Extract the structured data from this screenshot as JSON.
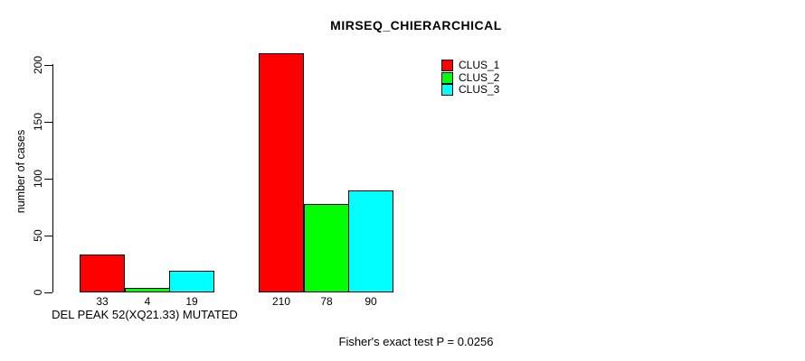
{
  "chart_data": {
    "type": "bar",
    "title": "MIRSEQ_CHIERARCHICAL",
    "ylabel": "number of cases",
    "xlabel": "DEL PEAK 52(XQ21.33) MUTATED",
    "annotation": "Fisher's exact test P = 0.0256",
    "ylim": [
      0,
      200
    ],
    "yticks": [
      0,
      50,
      100,
      150,
      200
    ],
    "grid": false,
    "legend_position": "top-right",
    "groups": [
      {
        "bars": [
          33,
          4,
          19
        ]
      },
      {
        "bars": [
          210,
          78,
          90
        ]
      }
    ],
    "series": [
      {
        "name": "CLUS_1",
        "color": "#FF0000",
        "values": [
          33,
          210
        ]
      },
      {
        "name": "CLUS_2",
        "color": "#00FF00",
        "values": [
          4,
          78
        ]
      },
      {
        "name": "CLUS_3",
        "color": "#00FFFF",
        "values": [
          19,
          90
        ]
      }
    ]
  }
}
